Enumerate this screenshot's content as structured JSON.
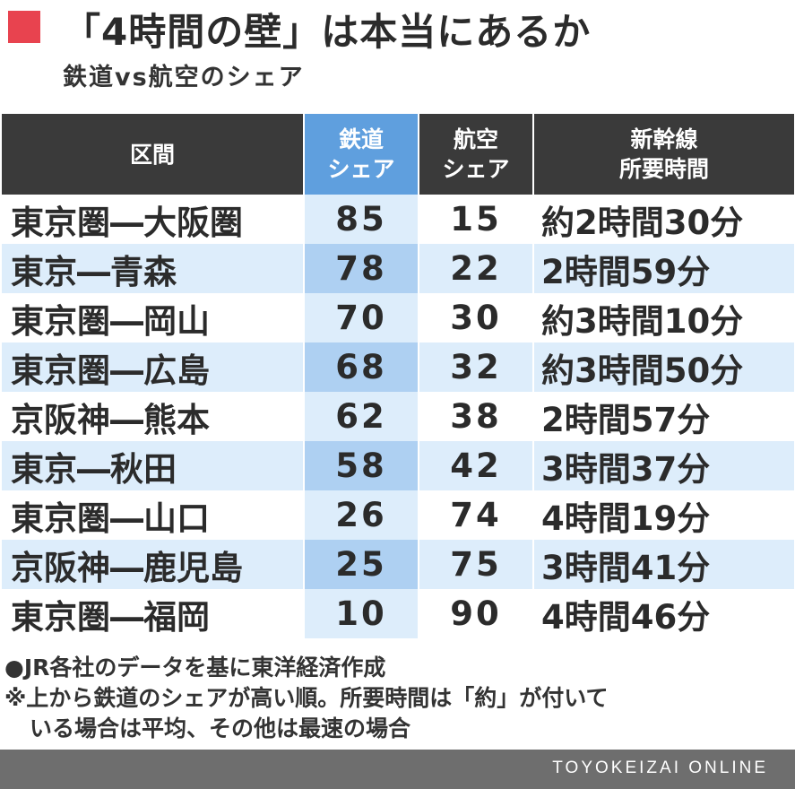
{
  "header": {
    "title": "「4時間の壁」は本当にあるか",
    "subtitle": "鉄道vs航空のシェア",
    "accent_color": "#e8434f"
  },
  "table": {
    "columns": [
      {
        "line1": "区間",
        "line2": ""
      },
      {
        "line1": "鉄道",
        "line2": "シェア"
      },
      {
        "line1": "航空",
        "line2": "シェア"
      },
      {
        "line1": "新幹線",
        "line2": "所要時間"
      }
    ],
    "rows": [
      {
        "route": "東京圏―大阪圏",
        "rail": "85",
        "air": "15",
        "time": "約2時間30分"
      },
      {
        "route": "東京―青森",
        "rail": "78",
        "air": "22",
        "time": "2時間59分"
      },
      {
        "route": "東京圏―岡山",
        "rail": "70",
        "air": "30",
        "time": "約3時間10分"
      },
      {
        "route": "東京圏―広島",
        "rail": "68",
        "air": "32",
        "time": "約3時間50分"
      },
      {
        "route": "京阪神―熊本",
        "rail": "62",
        "air": "38",
        "time": "2時間57分"
      },
      {
        "route": "東京―秋田",
        "rail": "58",
        "air": "42",
        "time": "3時間37分"
      },
      {
        "route": "東京圏―山口",
        "rail": "26",
        "air": "74",
        "time": "4時間19分"
      },
      {
        "route": "京阪神―鹿児島",
        "rail": "25",
        "air": "75",
        "time": "3時間41分"
      },
      {
        "route": "東京圏―福岡",
        "rail": "10",
        "air": "90",
        "time": "4時間46分"
      }
    ],
    "colors": {
      "header_bg": "#3a3a3a",
      "rail_header_bg": "#5f9fde",
      "stripe_light": "#ddedfb",
      "stripe_rail": "#aed0f2"
    }
  },
  "notes": {
    "source": "●JR各社のデータを基に東洋経済作成",
    "note_line1": "※上から鉄道のシェアが高い順。所要時間は「約」が付いて",
    "note_line2": "いる場合は平均、その他は最速の場合"
  },
  "footer": {
    "brand": "TOYOKEIZAI ONLINE"
  }
}
